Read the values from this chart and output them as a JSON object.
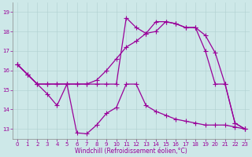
{
  "xlabel": "Windchill (Refroidissement éolien,°C)",
  "background_color": "#cde8e8",
  "line_color": "#990099",
  "xlim": [
    -0.5,
    23.5
  ],
  "ylim": [
    12.5,
    19.5
  ],
  "yticks": [
    13,
    14,
    15,
    16,
    17,
    18,
    19
  ],
  "xticks": [
    0,
    1,
    2,
    3,
    4,
    5,
    6,
    7,
    8,
    9,
    10,
    11,
    12,
    13,
    14,
    15,
    16,
    17,
    18,
    19,
    20,
    21,
    22,
    23
  ],
  "s1": [
    16.3,
    15.8,
    15.3,
    14.8,
    14.2,
    15.3,
    12.8,
    12.75,
    13.2,
    13.8,
    14.1,
    15.3,
    15.3,
    14.2,
    13.9,
    13.7,
    13.5,
    13.4,
    13.3,
    13.2,
    13.2,
    13.2,
    13.1,
    13.0
  ],
  "s2": [
    16.3,
    15.8,
    15.3,
    15.3,
    15.3,
    15.3,
    15.3,
    15.3,
    15.3,
    15.3,
    15.3,
    18.7,
    18.2,
    17.9,
    18.5,
    18.5,
    18.4,
    18.2,
    18.2,
    17.0,
    15.3,
    15.3,
    13.3,
    13.0
  ],
  "s3": [
    16.3,
    15.8,
    15.3,
    15.3,
    15.3,
    15.3,
    15.3,
    15.3,
    15.5,
    16.0,
    16.6,
    17.2,
    17.5,
    17.9,
    18.0,
    18.5,
    18.4,
    18.2,
    18.2,
    17.8,
    16.9,
    15.3,
    13.3,
    13.0
  ]
}
